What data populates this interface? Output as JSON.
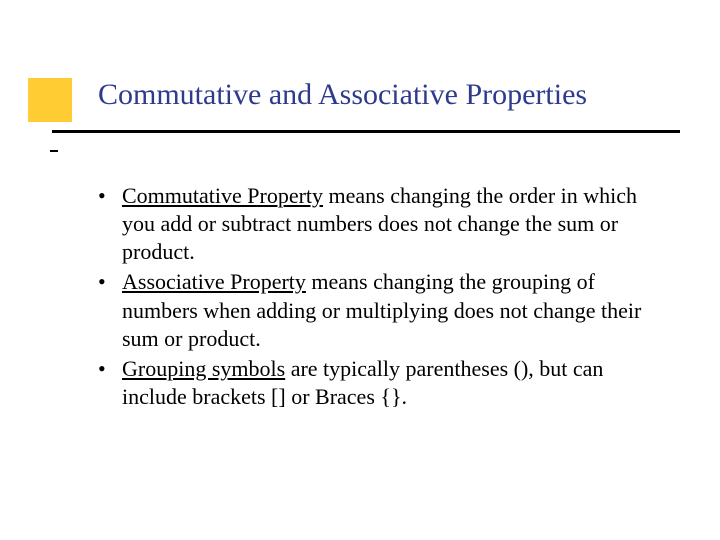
{
  "accent_color": "#ffcc33",
  "title_color": "#2e3b8c",
  "title": "Commutative and Associative Properties",
  "bullets": [
    {
      "lead": "Commutative Property",
      "rest": " means changing the order in which you add or subtract numbers does not change the sum or product."
    },
    {
      "lead": "Associative Property",
      "rest": " means changing the grouping of numbers when adding or multiplying does not change their sum or product."
    },
    {
      "lead": "Grouping symbols",
      "rest": " are typically parentheses (), but can include brackets [] or Braces {}."
    }
  ]
}
